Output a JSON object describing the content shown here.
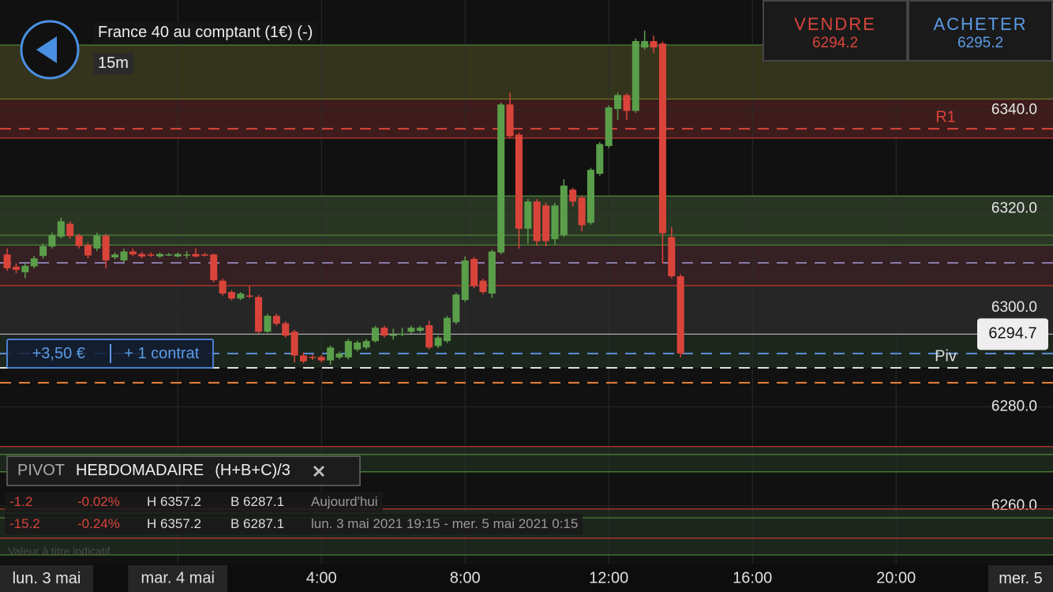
{
  "header": {
    "title": "France 40 au comptant (1€) (-)",
    "interval": "15m"
  },
  "quote": {
    "sell_label": "VENDRE",
    "sell_price": "6294.2",
    "buy_label": "ACHETER",
    "buy_price": "6295.2"
  },
  "position": {
    "pnl": "+3,50 €",
    "size": "+ 1 contrat"
  },
  "pivot_panel": {
    "name": "PIVOT",
    "period": "HEBDOMADAIRE",
    "formula": "(H+B+C)/3"
  },
  "stats": {
    "rows": [
      [
        "-1.2",
        "-0.02%",
        "H 6357.2",
        "B 6287.1",
        "Aujourd'hui"
      ],
      [
        "-15.2",
        "-0.24%",
        "H 6357.2",
        "B 6287.1",
        "lun. 3 mai 2021 19:15 - mer. 5 mai 2021 0:15"
      ]
    ]
  },
  "disclaimer": "Valeur à titre indicatif",
  "date_labels": {
    "left": "lun. 3 mai",
    "right": "mer. 5"
  },
  "chart_data": {
    "type": "candlestick",
    "up_color": "#5a9e4a",
    "down_color": "#d9443a",
    "xlim": [
      -4.95,
      24.37
    ],
    "ylim": [
      6248.2,
      6362.2
    ],
    "xticks": [
      {
        "value": 0,
        "label": "mar. 4 mai"
      },
      {
        "value": 4,
        "label": "4:00"
      },
      {
        "value": 8,
        "label": "8:00"
      },
      {
        "value": 12,
        "label": "12:00"
      },
      {
        "value": 16,
        "label": "16:00"
      },
      {
        "value": 20,
        "label": "20:00"
      }
    ],
    "yticks": [
      {
        "value": 6260,
        "label": "6260.0"
      },
      {
        "value": 6280,
        "label": "6280.0"
      },
      {
        "value": 6300,
        "label": "6300.0"
      },
      {
        "value": 6320,
        "label": "6320.0"
      },
      {
        "value": 6340,
        "label": "6340.0"
      }
    ],
    "grid": true,
    "last_price": 6294.7,
    "zones": [
      {
        "range": [
          6342.2,
          6353.1
        ],
        "color": "#34341c"
      },
      {
        "range": [
          6334.3,
          6342.2
        ],
        "color": "#3e1c1c"
      },
      {
        "range": [
          6312.7,
          6322.6
        ],
        "color": "#2a3624"
      },
      {
        "range": [
          6304.5,
          6312.7
        ],
        "color": "#352023"
      },
      {
        "range": [
          6294.7,
          6304.5
        ],
        "color": "#262626"
      },
      {
        "range": [
          6287.9,
          6294.7
        ],
        "color": "#1c261c"
      },
      {
        "range": [
          6266.9,
          6272.0
        ],
        "color": "#1c261c"
      },
      {
        "range": [
          6250.1,
          6259.4
        ],
        "color": "#1c261c"
      }
    ],
    "levels": [
      {
        "value": 6353.1,
        "color": "#4f8a3a",
        "dash": false
      },
      {
        "value": 6342.2,
        "color": "#6a7a2a",
        "dash": false
      },
      {
        "value": 6336.2,
        "color": "#d9443a",
        "dash": true,
        "label": "R1"
      },
      {
        "value": 6334.3,
        "color": "#c0392b",
        "dash": false
      },
      {
        "value": 6322.6,
        "color": "#4f8a3a",
        "dash": false
      },
      {
        "value": 6314.7,
        "color": "#4f8a3a",
        "dash": false
      },
      {
        "value": 6312.7,
        "color": "#4f8a3a",
        "dash": false
      },
      {
        "value": 6309.1,
        "color": "#8a7aa8",
        "dash": true
      },
      {
        "value": 6304.5,
        "color": "#c0392b",
        "dash": false
      },
      {
        "value": 6294.7,
        "color": "#aaaaaa",
        "dash": false
      },
      {
        "value": 6290.8,
        "color": "#5b8fd6",
        "dash": true
      },
      {
        "value": 6287.9,
        "color": "#dddddd",
        "dash": true,
        "label": "Piv"
      },
      {
        "value": 6284.9,
        "color": "#e8823a",
        "dash": true
      },
      {
        "value": 6272.0,
        "color": "#c0392b",
        "dash": false
      },
      {
        "value": 6270.4,
        "color": "#4f8a3a",
        "dash": false
      },
      {
        "value": 6266.9,
        "color": "#4f8a3a",
        "dash": false
      },
      {
        "value": 6259.4,
        "color": "#c0392b",
        "dash": false
      },
      {
        "value": 6257.6,
        "color": "#4f8a3a",
        "dash": false
      },
      {
        "value": 6253.5,
        "color": "#c0392b",
        "dash": false
      },
      {
        "value": 6250.1,
        "color": "#4f8a3a",
        "dash": false
      }
    ],
    "x": [
      -4.75,
      -4.5,
      -4.25,
      -4,
      -3.75,
      -3.5,
      -3.25,
      -3,
      -2.75,
      -2.5,
      -2.25,
      -2,
      -1.75,
      -1.5,
      -1.25,
      -1,
      -0.75,
      -0.5,
      -0.25,
      0,
      0.25,
      0.5,
      0.75,
      1,
      1.25,
      1.5,
      1.75,
      2,
      2.25,
      2.5,
      2.75,
      3,
      3.25,
      3.5,
      3.75,
      4,
      4.25,
      4.5,
      4.75,
      5,
      5.25,
      5.5,
      5.75,
      6,
      6.25,
      6.5,
      6.75,
      7,
      7.25,
      7.5,
      7.75,
      8,
      8.25,
      8.5,
      8.75,
      9,
      9.25,
      9.5,
      9.75,
      10,
      10.25,
      10.5,
      10.75,
      11,
      11.25,
      11.5,
      11.75,
      12,
      12.25,
      12.5,
      12.75,
      13,
      13.25,
      13.5,
      13.75,
      14
    ],
    "ohlc": [
      [
        6310.8,
        6312.0,
        6307.5,
        6308.0
      ],
      [
        6308.3,
        6309.0,
        6307.0,
        6307.7
      ],
      [
        6307.2,
        6309.0,
        6306.0,
        6308.5
      ],
      [
        6308.4,
        6310.5,
        6308.0,
        6310.0
      ],
      [
        6310.5,
        6313.0,
        6310.0,
        6312.5
      ],
      [
        6312.4,
        6315.2,
        6312.0,
        6314.7
      ],
      [
        6314.4,
        6318.2,
        6314.0,
        6317.5
      ],
      [
        6317.0,
        6317.5,
        6314.0,
        6314.5
      ],
      [
        6314.6,
        6315.0,
        6312.0,
        6312.5
      ],
      [
        6312.7,
        6313.2,
        6310.0,
        6310.6
      ],
      [
        6312.0,
        6315.2,
        6311.5,
        6314.6
      ],
      [
        6314.6,
        6315.0,
        6308.0,
        6309.6
      ],
      [
        6310.2,
        6311.2,
        6309.8,
        6310.8
      ],
      [
        6309.6,
        6312.0,
        6309.2,
        6311.4
      ],
      [
        6311.4,
        6312.0,
        6310.5,
        6310.8
      ],
      [
        6310.9,
        6311.3,
        6310.0,
        6310.4
      ],
      [
        6310.8,
        6311.2,
        6310.3,
        6310.7
      ],
      [
        6310.4,
        6311.2,
        6310.1,
        6310.9
      ],
      [
        6310.8,
        6311.1,
        6310.5,
        6310.8
      ],
      [
        6310.4,
        6311.2,
        6310.2,
        6310.9
      ],
      [
        6310.8,
        6311.5,
        6310.0,
        6310.8
      ],
      [
        6310.9,
        6312.0,
        6310.2,
        6310.4
      ],
      [
        6310.8,
        6311.1,
        6310.4,
        6310.6
      ],
      [
        6310.8,
        6311.0,
        6305.2,
        6305.6
      ],
      [
        6305.5,
        6305.9,
        6302.5,
        6302.9
      ],
      [
        6303.2,
        6303.6,
        6301.5,
        6301.9
      ],
      [
        6301.9,
        6303.2,
        6301.6,
        6302.9
      ],
      [
        6302.5,
        6304.5,
        6302.0,
        6302.4
      ],
      [
        6302.2,
        6302.6,
        6294.8,
        6295.2
      ],
      [
        6295.2,
        6298.8,
        6295.0,
        6298.4
      ],
      [
        6298.4,
        6298.8,
        6296.4,
        6296.8
      ],
      [
        6296.9,
        6297.3,
        6294.0,
        6294.4
      ],
      [
        6295.2,
        6295.6,
        6289.0,
        6290.4
      ],
      [
        6290.4,
        6291.0,
        6288.8,
        6289.2
      ],
      [
        6290.1,
        6290.6,
        6289.5,
        6290.0
      ],
      [
        6290.1,
        6290.5,
        6289.0,
        6289.4
      ],
      [
        6289.4,
        6292.4,
        6288.5,
        6292.0
      ],
      [
        6290.0,
        6291.2,
        6289.6,
        6290.8
      ],
      [
        6290.0,
        6293.7,
        6289.6,
        6293.3
      ],
      [
        6291.6,
        6293.4,
        6291.2,
        6293.0
      ],
      [
        6292.0,
        6293.7,
        6291.6,
        6293.3
      ],
      [
        6293.3,
        6296.4,
        6293.0,
        6296.0
      ],
      [
        6296.0,
        6296.4,
        6294.0,
        6294.4
      ],
      [
        6294.5,
        6295.8,
        6293.6,
        6294.6
      ],
      [
        6294.7,
        6296.0,
        6294.3,
        6294.8
      ],
      [
        6295.2,
        6296.4,
        6294.8,
        6296.0
      ],
      [
        6295.4,
        6296.4,
        6295.0,
        6296.0
      ],
      [
        6296.5,
        6297.4,
        6291.6,
        6292.0
      ],
      [
        6292.3,
        6294.4,
        6291.9,
        6294.0
      ],
      [
        6293.3,
        6298.4,
        6292.9,
        6298.0
      ],
      [
        6297.1,
        6303.1,
        6296.7,
        6302.7
      ],
      [
        6301.6,
        6310.4,
        6301.2,
        6309.6
      ],
      [
        6309.9,
        6310.3,
        6304.0,
        6304.4
      ],
      [
        6305.5,
        6305.9,
        6302.8,
        6303.2
      ],
      [
        6302.9,
        6311.8,
        6302.0,
        6311.4
      ],
      [
        6311.2,
        6341.5,
        6310.8,
        6341.1
      ],
      [
        6341.1,
        6343.5,
        6334.3,
        6334.7
      ],
      [
        6335.0,
        6335.4,
        6312.0,
        6316.0
      ],
      [
        6316.0,
        6322.0,
        6313.0,
        6321.5
      ],
      [
        6321.5,
        6322.0,
        6312.5,
        6313.5
      ],
      [
        6320.7,
        6321.3,
        6312.5,
        6313.5
      ],
      [
        6313.9,
        6321.2,
        6312.8,
        6320.7
      ],
      [
        6314.7,
        6326.0,
        6314.3,
        6324.7
      ],
      [
        6323.9,
        6324.3,
        6320.5,
        6321.5
      ],
      [
        6322.3,
        6322.7,
        6315.5,
        6316.7
      ],
      [
        6317.2,
        6328.3,
        6316.8,
        6327.9
      ],
      [
        6327.1,
        6333.5,
        6326.7,
        6333.1
      ],
      [
        6332.7,
        6340.9,
        6332.3,
        6340.5
      ],
      [
        6340.2,
        6343.5,
        6338.0,
        6343.0
      ],
      [
        6343.0,
        6343.4,
        6338.0,
        6339.8
      ],
      [
        6339.8,
        6354.4,
        6339.4,
        6353.9
      ],
      [
        6352.6,
        6356.0,
        6352.2,
        6353.9
      ],
      [
        6353.9,
        6355.0,
        6351.5,
        6352.6
      ],
      [
        6353.4,
        6353.8,
        6309.0,
        6315.1
      ],
      [
        6314.3,
        6316.3,
        6306.0,
        6306.4
      ],
      [
        6306.4,
        6306.8,
        6290.0,
        6290.8
      ]
    ]
  }
}
